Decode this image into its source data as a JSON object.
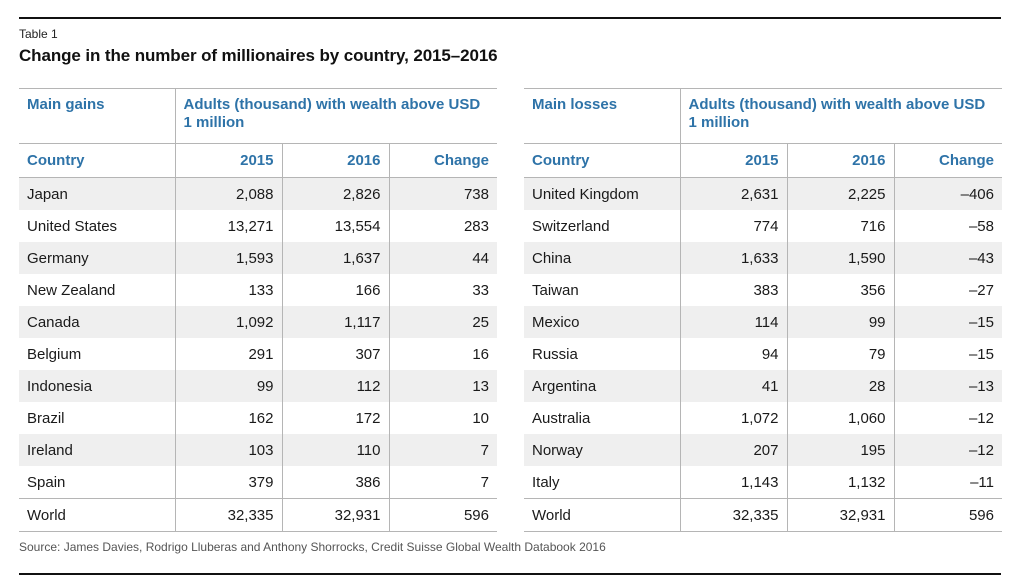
{
  "table_label": "Table 1",
  "title": "Change in the number of millionaires by country, 2015–2016",
  "source": "Source: James Davies, Rodrigo Lluberas and Anthony Shorrocks, Credit Suisse Global Wealth Databook 2016",
  "gains": {
    "group_label": "Main gains",
    "span_label": "Adults (thousand) with wealth above USD 1 million",
    "col_country": "Country",
    "col_2015": "2015",
    "col_2016": "2016",
    "col_change": "Change",
    "rows": [
      {
        "country": "Japan",
        "y2015": "2,088",
        "y2016": "2,826",
        "change": "738"
      },
      {
        "country": "United States",
        "y2015": "13,271",
        "y2016": "13,554",
        "change": "283"
      },
      {
        "country": "Germany",
        "y2015": "1,593",
        "y2016": "1,637",
        "change": "44"
      },
      {
        "country": "New Zealand",
        "y2015": "133",
        "y2016": "166",
        "change": "33"
      },
      {
        "country": "Canada",
        "y2015": "1,092",
        "y2016": "1,117",
        "change": "25"
      },
      {
        "country": "Belgium",
        "y2015": "291",
        "y2016": "307",
        "change": "16"
      },
      {
        "country": "Indonesia",
        "y2015": "99",
        "y2016": "112",
        "change": "13"
      },
      {
        "country": "Brazil",
        "y2015": "162",
        "y2016": "172",
        "change": "10"
      },
      {
        "country": "Ireland",
        "y2015": "103",
        "y2016": "110",
        "change": "7"
      },
      {
        "country": "Spain",
        "y2015": "379",
        "y2016": "386",
        "change": "7"
      }
    ],
    "world": {
      "country": "World",
      "y2015": "32,335",
      "y2016": "32,931",
      "change": "596"
    }
  },
  "losses": {
    "group_label": "Main losses",
    "span_label": "Adults (thousand) with wealth above USD 1 million",
    "col_country": "Country",
    "col_2015": "2015",
    "col_2016": "2016",
    "col_change": "Change",
    "rows": [
      {
        "country": "United Kingdom",
        "y2015": "2,631",
        "y2016": "2,225",
        "change": "–406"
      },
      {
        "country": "Switzerland",
        "y2015": "774",
        "y2016": "716",
        "change": "–58"
      },
      {
        "country": "China",
        "y2015": "1,633",
        "y2016": "1,590",
        "change": "–43"
      },
      {
        "country": "Taiwan",
        "y2015": "383",
        "y2016": "356",
        "change": "–27"
      },
      {
        "country": "Mexico",
        "y2015": "114",
        "y2016": "99",
        "change": "–15"
      },
      {
        "country": "Russia",
        "y2015": "94",
        "y2016": "79",
        "change": "–15"
      },
      {
        "country": "Argentina",
        "y2015": "41",
        "y2016": "28",
        "change": "–13"
      },
      {
        "country": "Australia",
        "y2015": "1,072",
        "y2016": "1,060",
        "change": "–12"
      },
      {
        "country": "Norway",
        "y2015": "207",
        "y2016": "195",
        "change": "–12"
      },
      {
        "country": "Italy",
        "y2015": "1,143",
        "y2016": "1,132",
        "change": "–11"
      }
    ],
    "world": {
      "country": "World",
      "y2015": "32,335",
      "y2016": "32,931",
      "change": "596"
    }
  }
}
